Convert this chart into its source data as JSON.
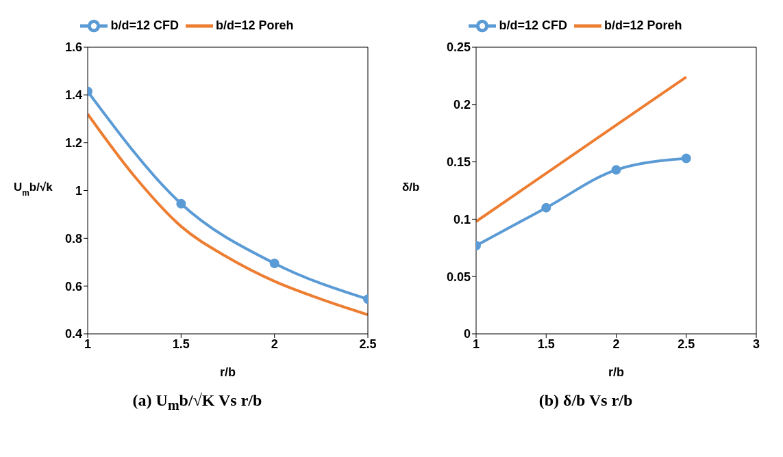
{
  "chart_data": [
    {
      "type": "line",
      "xlabel": "r/b",
      "ylabel": "U$_{m}$b/√k",
      "annotations": [
        "(a) U$_{m}$b/√K  Vs  r/b"
      ],
      "legend": "top",
      "xlim": [
        1,
        2.5
      ],
      "xticks": [
        1,
        1.5,
        2,
        2.5
      ],
      "ylim": [
        0.4,
        1.6
      ],
      "yticks": [
        0.4,
        0.6,
        0.8,
        1,
        1.2,
        1.4,
        1.6
      ],
      "series": [
        {
          "name": "b/d=12 Poreh",
          "color": "#ed7d31",
          "marker": "none",
          "x": [
            1,
            1.25,
            1.5,
            1.75,
            2,
            2.25,
            2.5
          ],
          "values": [
            1.32,
            1.06,
            0.85,
            0.72,
            0.62,
            0.545,
            0.48
          ]
        },
        {
          "name": "b/d=12 CFD",
          "color": "#5b9bd5",
          "marker": "circle",
          "x": [
            1,
            1.5,
            2,
            2.5
          ],
          "values": [
            1.415,
            0.945,
            0.695,
            0.545
          ]
        }
      ]
    },
    {
      "type": "line",
      "xlabel": "r/b",
      "ylabel": "δ/b",
      "annotations": [
        "(b)  δ/b Vs  r/b"
      ],
      "legend": "top",
      "xlim": [
        1,
        3
      ],
      "xticks": [
        1,
        1.5,
        2,
        2.5,
        3
      ],
      "ylim": [
        0,
        0.25
      ],
      "yticks": [
        0,
        0.05,
        0.1,
        0.15,
        0.2,
        0.25
      ],
      "series": [
        {
          "name": "b/d=12 Poreh",
          "color": "#ed7d31",
          "marker": "none",
          "x": [
            1,
            1.5,
            2,
            2.5
          ],
          "values": [
            0.098,
            0.14,
            0.182,
            0.224
          ]
        },
        {
          "name": "b/d=12 CFD",
          "color": "#5b9bd5",
          "marker": "circle",
          "x": [
            1,
            1.5,
            2,
            2.5
          ],
          "values": [
            0.077,
            0.11,
            0.143,
            0.153
          ]
        }
      ]
    }
  ]
}
